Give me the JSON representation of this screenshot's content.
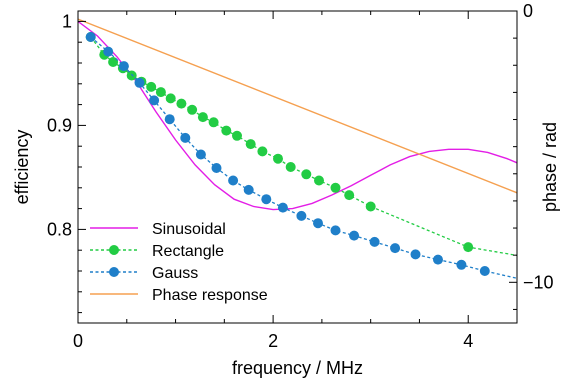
{
  "chart_data": {
    "type": "line",
    "xlabel": "frequency / MHz",
    "ylabel": "efficiency",
    "y2label": "phase / rad",
    "xlim": [
      0,
      4.5
    ],
    "ylim": [
      0.71,
      1.01
    ],
    "y2lim": [
      -11.5,
      0
    ],
    "xticks": [
      0,
      2,
      4
    ],
    "xtick_labels": [
      "0",
      "2",
      "4"
    ],
    "yticks": [
      0.8,
      0.9,
      1.0
    ],
    "ytick_labels": [
      "0.8",
      "0.9",
      "1"
    ],
    "y2ticks": [
      0,
      -10
    ],
    "y2tick_labels": [
      "0",
      "−10"
    ],
    "grid": false,
    "legend_position": "bottom-left",
    "series": [
      {
        "name": "Sinusoidal",
        "axis": "left",
        "style": "solid",
        "marker": "none",
        "color": "#e31ee6",
        "x": [
          0,
          0.2,
          0.4,
          0.6,
          0.8,
          1.0,
          1.2,
          1.4,
          1.6,
          1.8,
          2.0,
          2.2,
          2.4,
          2.6,
          2.8,
          3.0,
          3.2,
          3.4,
          3.6,
          3.8,
          4.0,
          4.2,
          4.4,
          4.5
        ],
        "y": [
          1.0,
          0.986,
          0.966,
          0.942,
          0.913,
          0.886,
          0.862,
          0.843,
          0.829,
          0.822,
          0.819,
          0.82,
          0.825,
          0.833,
          0.842,
          0.852,
          0.862,
          0.87,
          0.875,
          0.877,
          0.877,
          0.874,
          0.868,
          0.864
        ]
      },
      {
        "name": "Rectangle",
        "axis": "left",
        "style": "dashed",
        "marker": "circle",
        "color": "#22cc44",
        "x": [
          0.13,
          0.27,
          0.36,
          0.46,
          0.55,
          0.65,
          0.75,
          0.85,
          0.95,
          1.06,
          1.17,
          1.28,
          1.39,
          1.52,
          1.63,
          1.77,
          1.89,
          2.05,
          2.18,
          2.34,
          2.47,
          2.64,
          2.78,
          3.0,
          4.0,
          4.5
        ],
        "y": [
          0.985,
          0.968,
          0.961,
          0.955,
          0.948,
          0.942,
          0.937,
          0.932,
          0.926,
          0.921,
          0.915,
          0.908,
          0.903,
          0.895,
          0.89,
          0.882,
          0.875,
          0.868,
          0.86,
          0.853,
          0.847,
          0.84,
          0.833,
          0.822,
          0.783,
          0.775
        ]
      },
      {
        "name": "Gauss",
        "axis": "left",
        "style": "dashed",
        "marker": "circle",
        "color": "#1f7fc9",
        "x": [
          0.13,
          0.31,
          0.47,
          0.63,
          0.78,
          0.94,
          1.1,
          1.26,
          1.42,
          1.59,
          1.75,
          1.93,
          2.1,
          2.29,
          2.46,
          2.64,
          2.83,
          3.04,
          3.25,
          3.46,
          3.69,
          3.93,
          4.17,
          4.5
        ],
        "y": [
          0.985,
          0.971,
          0.957,
          0.941,
          0.924,
          0.906,
          0.888,
          0.872,
          0.859,
          0.847,
          0.838,
          0.829,
          0.821,
          0.813,
          0.806,
          0.799,
          0.794,
          0.788,
          0.782,
          0.776,
          0.771,
          0.766,
          0.76,
          0.753
        ]
      },
      {
        "name": "Phase response",
        "axis": "right",
        "style": "solid",
        "marker": "none",
        "color": "#f5a050",
        "x": [
          0,
          4.5
        ],
        "y": [
          -0.3,
          -6.7
        ]
      }
    ]
  }
}
